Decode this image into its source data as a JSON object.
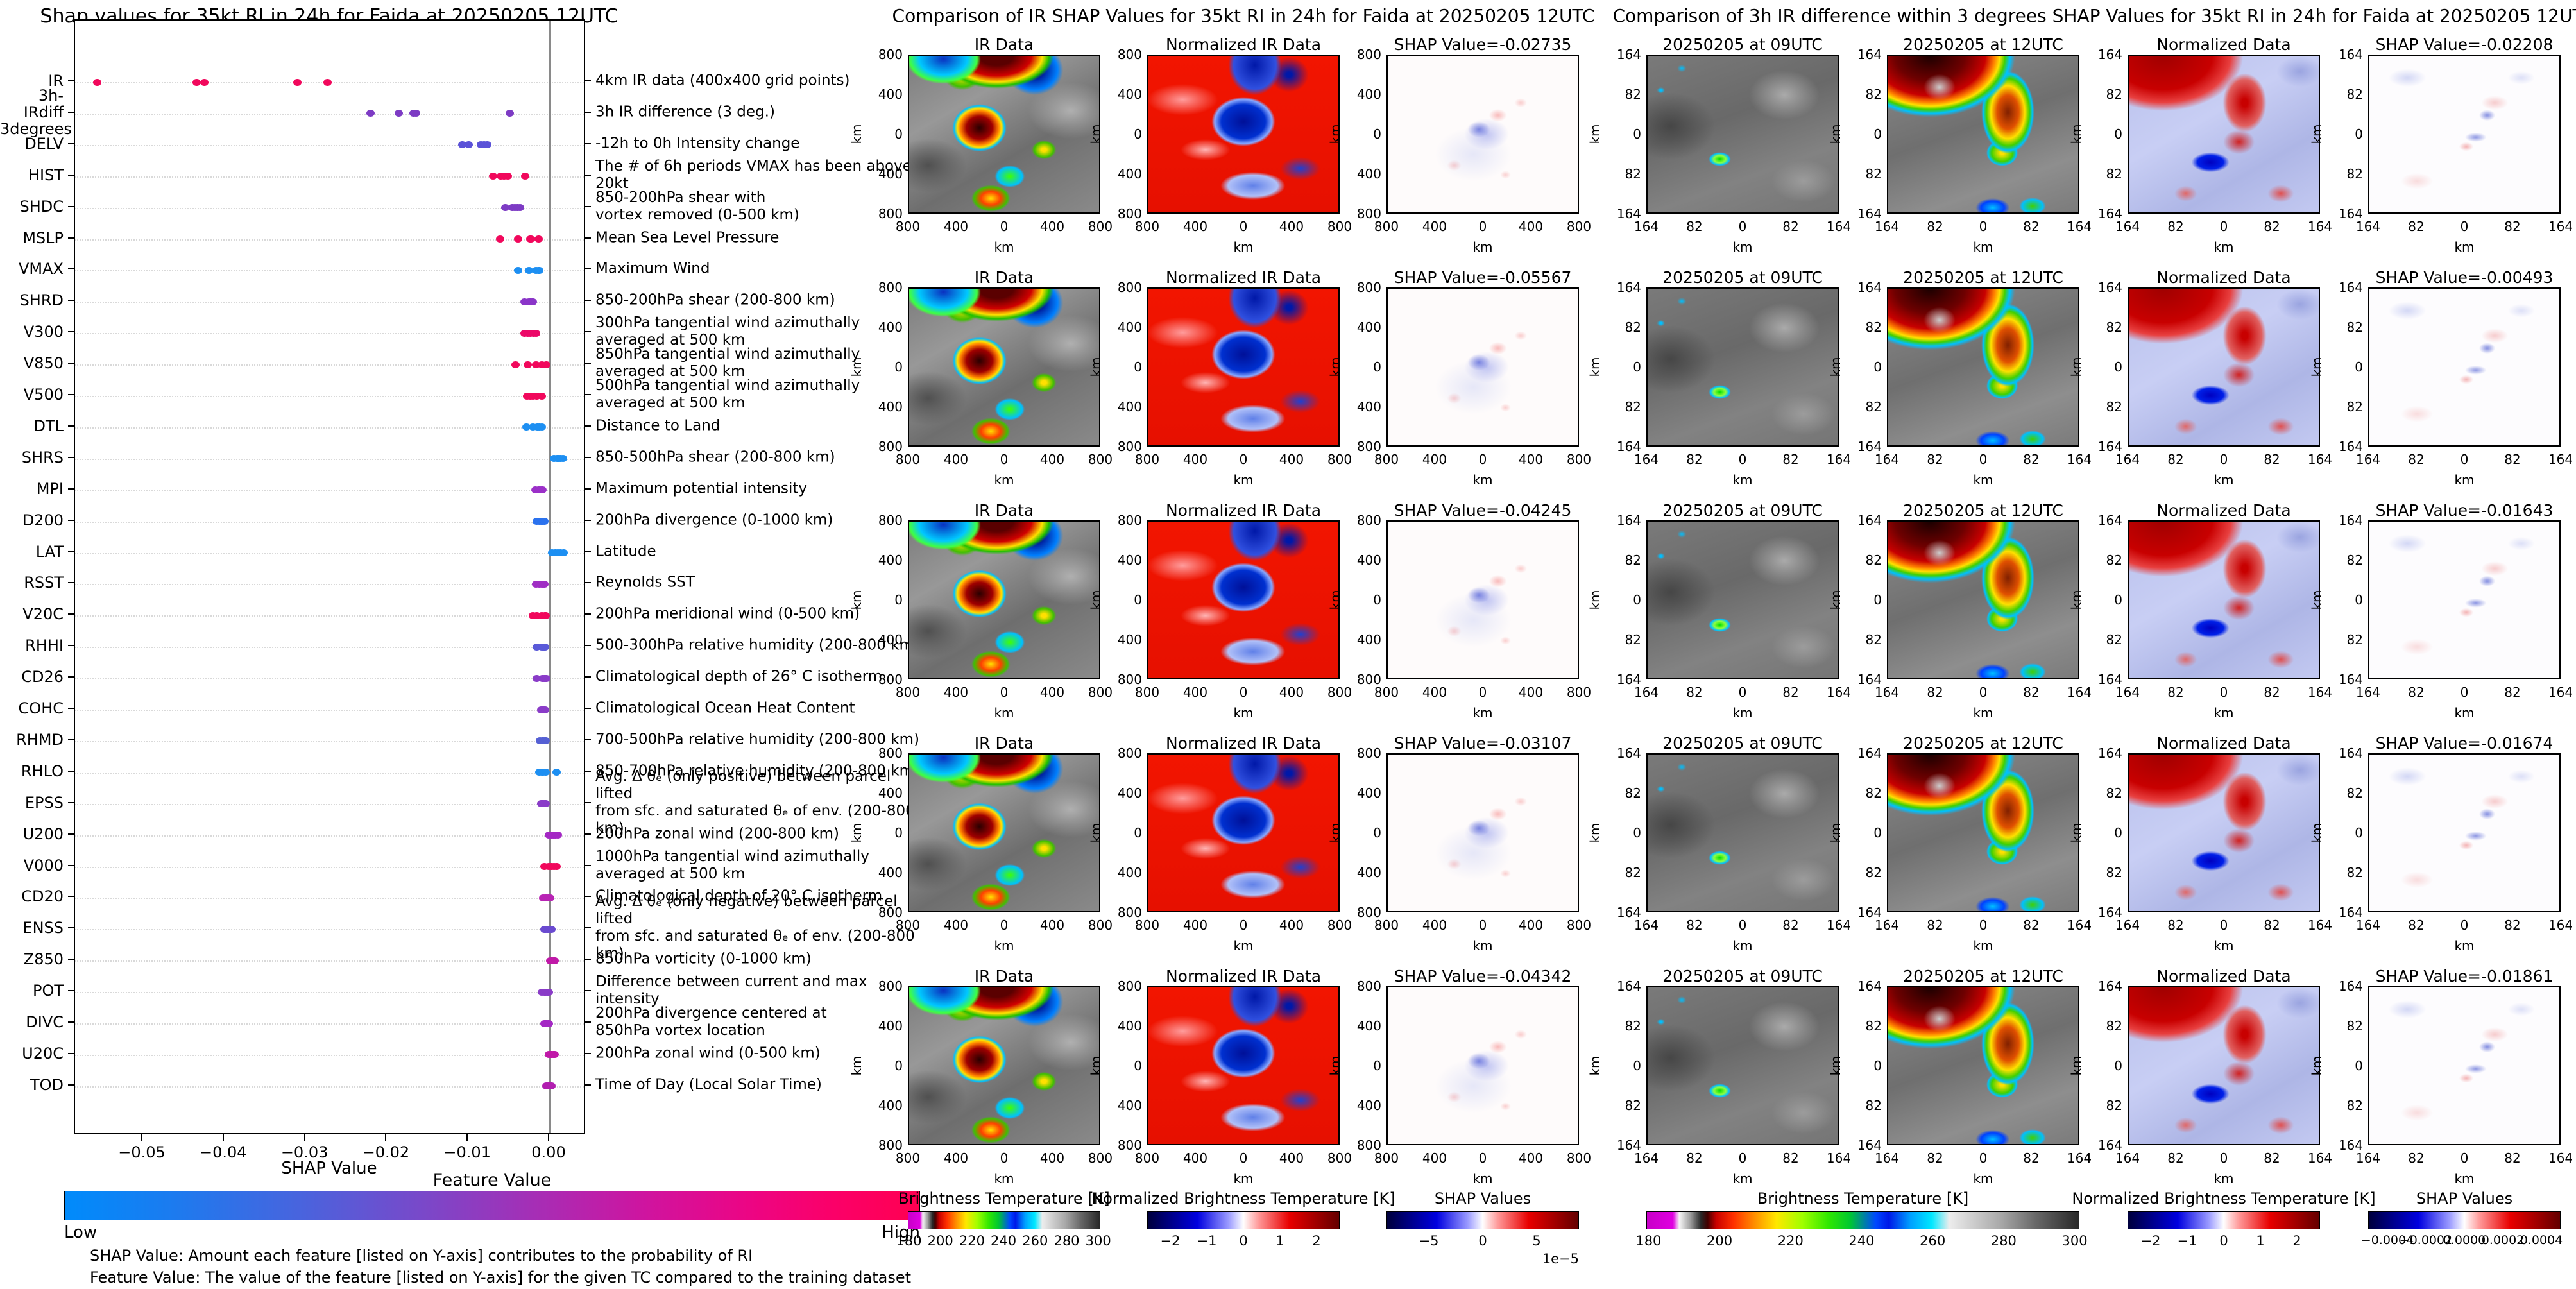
{
  "beeswarm": {
    "title": "Shap values for 35kt RI in 24h for Faida at 20250205 12UTC",
    "xlabel": "SHAP Value",
    "x_tick_labels": [
      "−0.05",
      "−0.04",
      "−0.03",
      "−0.02",
      "−0.01",
      "0.00"
    ],
    "colorbar": {
      "title": "Feature Value",
      "low": "Low",
      "high": "High",
      "low_color": "#008bfb",
      "high_color": "#ff0051"
    },
    "footnote1": "SHAP Value: Amount each feature [listed on Y-axis] contributes to the probability of RI",
    "footnote2": "Feature Value: The value of the feature [listed on Y-axis] for the given TC compared to the training dataset"
  },
  "chart_data": {
    "type": "scatter",
    "title": "Shap values for 35kt RI in 24h for Faida at 20250205 12UTC",
    "xlabel": "SHAP Value",
    "xlim": [
      -0.0585,
      0.0045
    ],
    "x_ticks": [
      -0.05,
      -0.04,
      -0.03,
      -0.02,
      -0.01,
      0.0
    ],
    "grid": "dotted horizontal per feature, gray vertical line at 0",
    "features": [
      {
        "label": "IR",
        "description": "4km IR data (400x400 grid points)",
        "color": "#f1085c",
        "values": [
          -0.05567,
          -0.04342,
          -0.04245,
          -0.03107,
          -0.02735
        ]
      },
      {
        "label": "3h-IRdiff\n3degrees",
        "description": "3h IR difference (3 deg.)",
        "color": "#7d3bc4",
        "values": [
          -0.02208,
          -0.01861,
          -0.01674,
          -0.01643,
          -0.00493
        ]
      },
      {
        "label": "DELV",
        "description": "-12h to 0h Intensity change",
        "color": "#5b52d8",
        "values": [
          -0.0108,
          -0.01,
          -0.0085,
          -0.0081,
          -0.0077
        ]
      },
      {
        "label": "HIST",
        "description": "The # of 6h periods VMAX has been above 20kt",
        "color": "#f1085c",
        "values": [
          -0.007,
          -0.006,
          -0.0056,
          -0.0052,
          -0.003
        ]
      },
      {
        "label": "SHDC",
        "description": "850-200hPa shear with\nvortex removed (0-500 km)",
        "color": "#7d3bc4",
        "values": [
          -0.0055,
          -0.0046,
          -0.0043,
          -0.004,
          -0.0037
        ]
      },
      {
        "label": "MSLP",
        "description": "Mean Sea Level Pressure",
        "color": "#f1085c",
        "values": [
          -0.0061,
          -0.0039,
          -0.0024,
          -0.0023,
          -0.0014
        ]
      },
      {
        "label": "VMAX",
        "description": "Maximum Wind",
        "color": "#1d8ff2",
        "values": [
          -0.0039,
          -0.0026,
          -0.0017,
          -0.0014,
          -0.0013
        ]
      },
      {
        "label": "SHRD",
        "description": "850-200hPa shear (200-800 km)",
        "color": "#8a35c8",
        "values": [
          -0.0031,
          -0.0026,
          -0.0024,
          -0.0022,
          -0.0021
        ]
      },
      {
        "label": "V300",
        "description": "300hPa tangential wind azimuthally\naveraged at 500 km",
        "color": "#ec0868",
        "values": [
          -0.0031,
          -0.0027,
          -0.0024,
          -0.002,
          -0.0017
        ]
      },
      {
        "label": "V850",
        "description": "850hPa tangential wind azimuthally\naveraged at 500 km",
        "color": "#f1085c",
        "values": [
          -0.0042,
          -0.0027,
          -0.0017,
          -0.001,
          -0.0004
        ]
      },
      {
        "label": "V500",
        "description": "500hPa tangential wind azimuthally\naveraged at 500 km",
        "color": "#f1085c",
        "values": [
          -0.0028,
          -0.0024,
          -0.0021,
          -0.0016,
          -0.001
        ]
      },
      {
        "label": "DTL",
        "description": "Distance to Land",
        "color": "#1d8ff2",
        "values": [
          -0.0029,
          -0.0021,
          -0.0015,
          -0.0013,
          -0.001
        ]
      },
      {
        "label": "SHRS",
        "description": "850-500hPa shear (200-800 km)",
        "color": "#1d8ff2",
        "values": [
          0.0005,
          0.0009,
          0.0011,
          0.0013,
          0.0016
        ]
      },
      {
        "label": "MPI",
        "description": "Maximum potential intensity",
        "color": "#9b30c8",
        "values": [
          -0.0018,
          -0.0014,
          -0.0012,
          -0.001,
          -0.0009
        ]
      },
      {
        "label": "D200",
        "description": "200hPa divergence (0-1000 km)",
        "color": "#2b72ee",
        "values": [
          -0.0016,
          -0.0013,
          -0.0011,
          -0.0009,
          -0.0007
        ]
      },
      {
        "label": "LAT",
        "description": "Latitude",
        "color": "#1d8ff2",
        "values": [
          0.0003,
          0.0007,
          0.001,
          0.0013,
          0.0017
        ]
      },
      {
        "label": "RSST",
        "description": "Reynolds SST",
        "color": "#a02fc4",
        "values": [
          -0.0017,
          -0.0013,
          -0.001,
          -0.0008,
          -0.0007
        ]
      },
      {
        "label": "V20C",
        "description": "200hPa meridional wind (0-500 km)",
        "color": "#f1085c",
        "values": [
          -0.0021,
          -0.0016,
          -0.001,
          -0.0006,
          -0.0005
        ]
      },
      {
        "label": "RHHI",
        "description": "500-300hPa relative humidity (200-800 km)",
        "color": "#5a5ad8",
        "values": [
          -0.0016,
          -0.001,
          -0.0008,
          -0.0007,
          -0.0006
        ]
      },
      {
        "label": "CD26",
        "description": "Climatological depth of 26° C isotherm",
        "color": "#8a3cc8",
        "values": [
          -0.0016,
          -0.0009,
          -0.0007,
          -0.0006,
          -0.0004
        ]
      },
      {
        "label": "COHC",
        "description": "Climatological Ocean Heat Content",
        "color": "#8a3cc8",
        "values": [
          -0.0011,
          -0.0009,
          -0.0008,
          -0.0007,
          -0.0006
        ]
      },
      {
        "label": "RHMD",
        "description": "700-500hPa relative humidity (200-800 km)",
        "color": "#5560d4",
        "values": [
          -0.0012,
          -0.0009,
          -0.0008,
          -0.0006,
          -0.0005
        ]
      },
      {
        "label": "RHLO",
        "description": "850-700hPa relative humidity (200-800 km)",
        "color": "#1d8ff2",
        "values": [
          -0.0013,
          -0.001,
          -0.0008,
          -0.0005,
          0.0008
        ]
      },
      {
        "label": "EPSS",
        "description": "Avg. Δ θₑ (only positive) between parcel lifted\nfrom sfc. and saturated θₑ of env. (200-800 km)",
        "color": "#8a3cc8",
        "values": [
          -0.0011,
          -0.0009,
          -0.0008,
          -0.0006,
          -0.0005
        ]
      },
      {
        "label": "U200",
        "description": "200hPa zonal wind (200-800 km)",
        "color": "#a428c4",
        "values": [
          -0.0001,
          0.0002,
          0.0004,
          0.0007,
          0.001
        ]
      },
      {
        "label": "V000",
        "description": "1000hPa tangential wind azimuthally\naveraged at 500 km",
        "color": "#f1085c",
        "values": [
          -0.0007,
          -0.0001,
          0.0002,
          0.0005,
          0.0008
        ]
      },
      {
        "label": "CD20",
        "description": "Climatological depth of 20° C isotherm",
        "color": "#b824b4",
        "values": [
          -0.0008,
          -0.0006,
          -0.0004,
          -0.0002,
          0.0
        ]
      },
      {
        "label": "ENSS",
        "description": "Avg. Δ θₑ (only negative) between parcel lifted\nfrom sfc. and saturated θₑ of env. (200-800 km)",
        "color": "#6a4ad0",
        "values": [
          -0.0007,
          -0.0005,
          -0.0003,
          -0.0001,
          0.0002
        ]
      },
      {
        "label": "Z850",
        "description": "850hPa vorticity (0-1000 km)",
        "color": "#c019a8",
        "values": [
          0.0,
          0.0002,
          0.0003,
          0.0005,
          0.0006
        ]
      },
      {
        "label": "POT",
        "description": "Difference between current and max intensity",
        "color": "#8a3cc8",
        "values": [
          -0.001,
          -0.0007,
          -0.0005,
          -0.0003,
          -0.0001
        ]
      },
      {
        "label": "DIVC",
        "description": "200hPa divergence centered at\n850hPa vortex location",
        "color": "#a428c4",
        "values": [
          -0.0007,
          -0.0005,
          -0.0004,
          -0.0002,
          -0.0001
        ]
      },
      {
        "label": "U20C",
        "description": "200hPa zonal wind (0-500 km)",
        "color": "#c019a8",
        "values": [
          -0.0001,
          0.0001,
          0.0002,
          0.0004,
          0.0006
        ]
      },
      {
        "label": "TOD",
        "description": "Time of Day (Local Solar Time)",
        "color": "#b21fb0",
        "values": [
          -0.0004,
          -0.0002,
          -0.0001,
          0.0001,
          0.0002
        ]
      }
    ],
    "ir_row_shap_values": [
      -0.02735,
      -0.05567,
      -0.04245,
      -0.03107,
      -0.04342
    ],
    "irdiff_row_shap_values": [
      -0.02208,
      -0.00493,
      -0.01643,
      -0.01674,
      -0.01861
    ]
  },
  "ir_section": {
    "title": "Comparison of IR SHAP Values for 35kt RI in 24h for Faida at 20250205 12UTC",
    "col_titles": [
      "IR Data",
      "Normalized IR Data"
    ],
    "shap_titles": [
      "SHAP Value=-0.02735",
      "SHAP Value=-0.05567",
      "SHAP Value=-0.04245",
      "SHAP Value=-0.03107",
      "SHAP Value=-0.04342"
    ],
    "y_ticks": [
      "800",
      "400",
      "0",
      "400",
      "800"
    ],
    "x_ticks": [
      "800",
      "400",
      "0",
      "400",
      "800"
    ],
    "axis_label": "km",
    "colorbars": [
      {
        "title": "Brightness Temperature [K]",
        "ticks": [
          "180",
          "200",
          "220",
          "240",
          "260",
          "280",
          "300"
        ]
      },
      {
        "title": "Normalized Brightness Temperature [K]",
        "ticks": [
          "−2",
          "−1",
          "0",
          "1",
          "2"
        ]
      },
      {
        "title": "SHAP Values",
        "ticks": [
          "−5",
          "0",
          "5"
        ],
        "exponent": "1e−5"
      }
    ]
  },
  "irdiff_section": {
    "title": "Comparison of 3h IR difference within 3 degrees SHAP Values for 35kt RI in 24h for Faida at 20250205 12UTC",
    "col_titles": [
      "20250205 at 09UTC",
      "20250205 at 12UTC",
      "Normalized Data"
    ],
    "shap_titles": [
      "SHAP Value=-0.02208",
      "SHAP Value=-0.00493",
      "SHAP Value=-0.01643",
      "SHAP Value=-0.01674",
      "SHAP Value=-0.01861"
    ],
    "y_ticks": [
      "164",
      "82",
      "0",
      "82",
      "164"
    ],
    "x_ticks": [
      "164",
      "82",
      "0",
      "82",
      "164"
    ],
    "axis_label": "km",
    "colorbars": [
      {
        "title": "Brightness Temperature [K]",
        "ticks": [
          "180",
          "200",
          "220",
          "240",
          "260",
          "280",
          "300"
        ]
      },
      {
        "title": "Normalized Brightness Temperature [K]",
        "ticks": [
          "−2",
          "−1",
          "0",
          "1",
          "2"
        ]
      },
      {
        "title": "SHAP Values",
        "ticks": [
          "−0.0004",
          "−0.0002",
          "0.0000",
          "0.0002",
          "0.0004"
        ]
      }
    ]
  }
}
